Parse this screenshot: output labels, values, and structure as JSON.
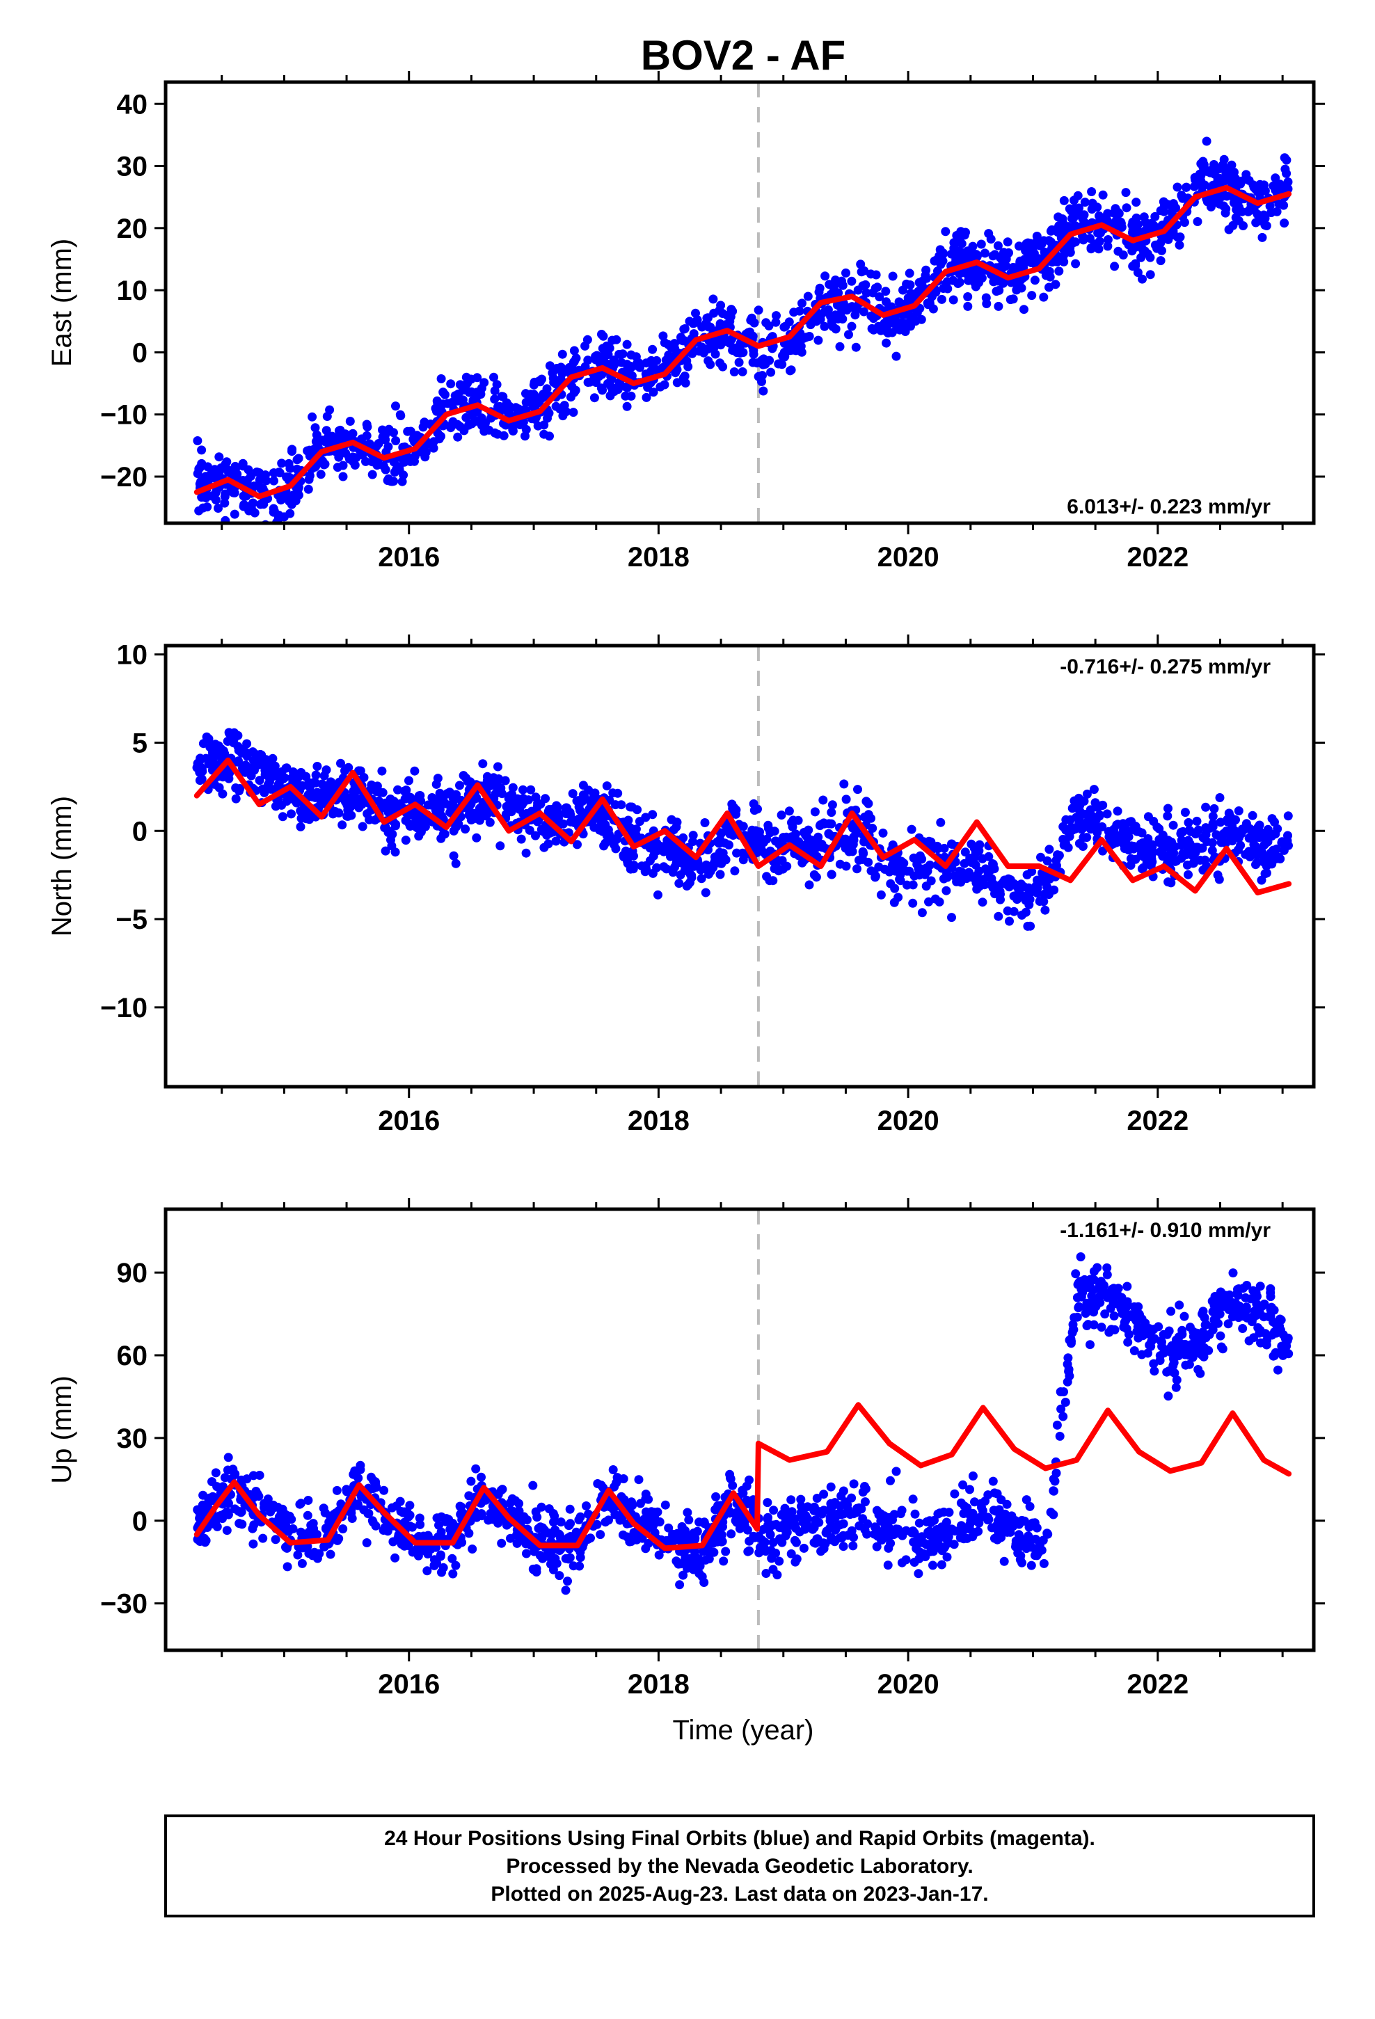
{
  "title": "BOV2 - AF",
  "xlabel": "Time (year)",
  "colors": {
    "points": "#0000ff",
    "model": "#ff0000",
    "offset_line": "#bbbbbb",
    "frame": "#000000"
  },
  "footer": {
    "line1": "24 Hour Positions Using Final Orbits (blue) and Rapid Orbits (magenta).",
    "line2": "Processed by the Nevada Geodetic Laboratory.",
    "line3": "Plotted on 2025-Aug-23. Last data on 2023-Jan-17."
  },
  "chart_data": [
    {
      "type": "scatter",
      "component": "east",
      "ylabel": "East (mm)",
      "rate_text": "6.013+/- 0.223 mm/yr",
      "rate_position": "bottom-right",
      "xlim": [
        2014.05,
        2023.25
      ],
      "ylim": [
        -27.5,
        43.5
      ],
      "xticks": [
        2016,
        2018,
        2020,
        2022
      ],
      "xtick_labels": [
        "2016",
        "2018",
        "2020",
        "2022"
      ],
      "yticks": [
        -20,
        -10,
        0,
        10,
        20,
        30,
        40
      ],
      "ytick_labels": [
        "−20",
        "−10",
        "0",
        "10",
        "20",
        "30",
        "40"
      ],
      "offset_epochs": [
        2018.8
      ],
      "data_range": [
        2014.3,
        2023.05
      ],
      "series": [
        {
          "kind": "points",
          "color": "blue",
          "x": [
            2014.35,
            2014.6,
            2014.85,
            2015.1,
            2015.35,
            2015.6,
            2015.85,
            2016.1,
            2016.35,
            2016.6,
            2016.85,
            2017.1,
            2017.35,
            2017.6,
            2017.85,
            2018.1,
            2018.35,
            2018.6,
            2018.85,
            2019.1,
            2019.35,
            2019.6,
            2019.85,
            2020.1,
            2020.35,
            2020.6,
            2020.85,
            2021.1,
            2021.35,
            2021.6,
            2021.85,
            2022.1,
            2022.35,
            2022.6,
            2022.85,
            2023.0
          ],
          "y": [
            -21,
            -21.5,
            -23.5,
            -21,
            -15,
            -15,
            -17,
            -14,
            -9,
            -9,
            -11,
            -8,
            -3,
            -3,
            -5,
            -2,
            3,
            3,
            0,
            2,
            8,
            8,
            6,
            9,
            15,
            14,
            12,
            15,
            21,
            20,
            18,
            21,
            27,
            26,
            24,
            26
          ]
        },
        {
          "kind": "model",
          "color": "red",
          "x": [
            2014.3,
            2014.55,
            2014.8,
            2015.05,
            2015.3,
            2015.55,
            2015.8,
            2016.05,
            2016.3,
            2016.55,
            2016.8,
            2017.05,
            2017.3,
            2017.55,
            2017.8,
            2018.05,
            2018.3,
            2018.55,
            2018.8,
            2019.05,
            2019.3,
            2019.55,
            2019.8,
            2020.05,
            2020.3,
            2020.55,
            2020.8,
            2021.05,
            2021.3,
            2021.55,
            2021.8,
            2022.05,
            2022.3,
            2022.55,
            2022.8,
            2023.05
          ],
          "y": [
            -22.5,
            -20.5,
            -23.2,
            -21.5,
            -16,
            -14.5,
            -17,
            -15.5,
            -10,
            -8.5,
            -11,
            -9.5,
            -4,
            -2.5,
            -5,
            -3.5,
            2,
            3.5,
            1,
            2.5,
            8,
            9,
            6,
            7.5,
            13,
            14.5,
            12,
            13.5,
            19,
            20.5,
            18,
            19.5,
            25,
            26.5,
            24,
            25.5
          ]
        }
      ]
    },
    {
      "type": "scatter",
      "component": "north",
      "ylabel": "North (mm)",
      "rate_text": "-0.716+/- 0.275 mm/yr",
      "rate_position": "top-right",
      "xlim": [
        2014.05,
        2023.25
      ],
      "ylim": [
        -14.5,
        10.5
      ],
      "xticks": [
        2016,
        2018,
        2020,
        2022
      ],
      "xtick_labels": [
        "2016",
        "2018",
        "2020",
        "2022"
      ],
      "yticks": [
        -10,
        -5,
        0,
        5,
        10
      ],
      "ytick_labels": [
        "−10",
        "−5",
        "0",
        "5",
        "10"
      ],
      "offset_epochs": [
        2018.8
      ],
      "data_range": [
        2014.3,
        2023.05
      ],
      "series": [
        {
          "kind": "points",
          "color": "blue",
          "x": [
            2014.35,
            2014.6,
            2014.85,
            2015.1,
            2015.35,
            2015.6,
            2015.85,
            2016.1,
            2016.35,
            2016.6,
            2016.85,
            2017.1,
            2017.35,
            2017.6,
            2017.85,
            2018.1,
            2018.35,
            2018.6,
            2018.85,
            2019.1,
            2019.35,
            2019.6,
            2019.85,
            2020.1,
            2020.35,
            2020.6,
            2020.85,
            2021.1,
            2021.35,
            2021.6,
            2021.85,
            2022.1,
            2022.35,
            2022.6,
            2022.85,
            2023.0
          ],
          "y": [
            4,
            4,
            3,
            2,
            2,
            2,
            1,
            1,
            1,
            2,
            1,
            0.5,
            1,
            1,
            -1,
            -1,
            -2,
            0,
            -1,
            -1,
            -1,
            0,
            -2,
            -2,
            -2,
            -2,
            -4,
            -3,
            1,
            0,
            -1,
            -1,
            -1,
            0,
            -1,
            -1
          ]
        },
        {
          "kind": "model",
          "color": "red",
          "x": [
            2014.3,
            2014.55,
            2014.8,
            2015.05,
            2015.3,
            2015.55,
            2015.8,
            2016.05,
            2016.3,
            2016.55,
            2016.8,
            2017.05,
            2017.3,
            2017.55,
            2017.8,
            2018.05,
            2018.3,
            2018.55,
            2018.8,
            2019.05,
            2019.3,
            2019.55,
            2019.8,
            2020.05,
            2020.3,
            2020.55,
            2020.8,
            2021.05,
            2021.3,
            2021.55,
            2021.8,
            2022.05,
            2022.3,
            2022.55,
            2022.8,
            2023.05
          ],
          "y": [
            2,
            4,
            1.5,
            2.5,
            0.8,
            3.3,
            0.5,
            1.5,
            0.2,
            2.6,
            0,
            1,
            -0.6,
            1.8,
            -0.9,
            0,
            -1.5,
            1,
            -2,
            -0.8,
            -2,
            1,
            -1.5,
            -0.5,
            -2,
            0.5,
            -2,
            -2,
            -2.8,
            -0.5,
            -2.8,
            -2,
            -3.4,
            -1,
            -3.5,
            -3
          ]
        }
      ]
    },
    {
      "type": "scatter",
      "component": "up",
      "ylabel": "Up (mm)",
      "rate_text": "-1.161+/- 0.910 mm/yr",
      "rate_position": "top-right",
      "xlim": [
        2014.05,
        2023.25
      ],
      "ylim": [
        -47,
        113
      ],
      "xticks": [
        2016,
        2018,
        2020,
        2022
      ],
      "xtick_labels": [
        "2016",
        "2018",
        "2020",
        "2022"
      ],
      "yticks": [
        -30,
        0,
        30,
        60,
        90
      ],
      "ytick_labels": [
        "−30",
        "0",
        "30",
        "60",
        "90"
      ],
      "offset_epochs": [
        2018.8
      ],
      "data_range": [
        2014.3,
        2023.05
      ],
      "series": [
        {
          "kind": "points",
          "color": "blue",
          "x": [
            2014.35,
            2014.6,
            2014.85,
            2015.1,
            2015.35,
            2015.6,
            2015.85,
            2016.1,
            2016.35,
            2016.6,
            2016.85,
            2017.1,
            2017.35,
            2017.6,
            2017.85,
            2018.1,
            2018.35,
            2018.6,
            2018.85,
            2019.1,
            2019.35,
            2019.6,
            2019.85,
            2020.1,
            2020.35,
            2020.6,
            2020.85,
            2021.1,
            2021.35,
            2021.6,
            2021.85,
            2022.1,
            2022.35,
            2022.6,
            2022.85,
            2023.0
          ],
          "y": [
            0,
            12,
            2,
            -5,
            -5,
            12,
            2,
            -8,
            -8,
            10,
            0,
            -10,
            -10,
            8,
            0,
            -10,
            -10,
            6,
            -5,
            -3,
            -2,
            3,
            -2,
            -8,
            -5,
            5,
            -5,
            -10,
            80,
            82,
            70,
            62,
            65,
            80,
            75,
            65
          ]
        },
        {
          "kind": "model",
          "color": "red",
          "x": [
            2014.3,
            2014.45,
            2014.6,
            2014.8,
            2015.05,
            2015.35,
            2015.6,
            2015.8,
            2016.05,
            2016.35,
            2016.6,
            2016.8,
            2017.05,
            2017.35,
            2017.6,
            2017.8,
            2018.05,
            2018.35,
            2018.6,
            2018.79,
            2018.8,
            2019.05,
            2019.35,
            2019.6,
            2019.85,
            2020.1,
            2020.35,
            2020.6,
            2020.85,
            2021.1,
            2021.35,
            2021.6,
            2021.85,
            2022.1,
            2022.35,
            2022.6,
            2022.85,
            2023.05
          ],
          "y": [
            -5,
            5,
            14,
            2,
            -8,
            -7,
            13,
            3,
            -8,
            -8,
            12,
            1,
            -9,
            -9,
            11,
            -1,
            -10,
            -9,
            10,
            -3,
            28,
            22,
            25,
            42,
            28,
            20,
            24,
            41,
            26,
            19,
            22,
            40,
            25,
            18,
            21,
            39,
            22,
            17
          ]
        }
      ]
    }
  ]
}
